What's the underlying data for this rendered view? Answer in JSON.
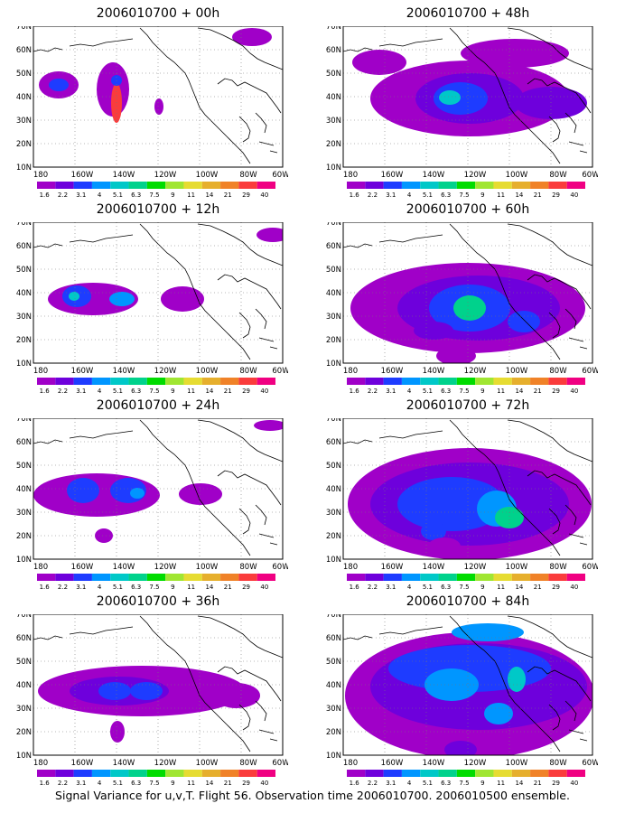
{
  "panels": [
    {
      "id": "p00",
      "title": "2006010700 + 00h"
    },
    {
      "id": "p48",
      "title": "2006010700 + 48h"
    },
    {
      "id": "p12",
      "title": "2006010700 + 12h"
    },
    {
      "id": "p60",
      "title": "2006010700 + 60h"
    },
    {
      "id": "p24",
      "title": "2006010700 + 24h"
    },
    {
      "id": "p72",
      "title": "2006010700 + 72h"
    },
    {
      "id": "p36",
      "title": "2006010700 + 36h"
    },
    {
      "id": "p84",
      "title": "2006010700 + 84h"
    }
  ],
  "lat_labels": [
    "70N",
    "60N",
    "50N",
    "40N",
    "30N",
    "20N",
    "10N"
  ],
  "lon_labels": [
    "180",
    "160W",
    "140W",
    "120W",
    "100W",
    "80W",
    "60W"
  ],
  "colorbar": {
    "levels": [
      "1.6",
      "2.2",
      "3.1",
      "4",
      "5.1",
      "6.3",
      "7.5",
      "9",
      "11",
      "14",
      "21",
      "29",
      "40"
    ],
    "colors": [
      "#a000c8",
      "#6e00dc",
      "#1e3cff",
      "#0096ff",
      "#00c8c8",
      "#00d28c",
      "#00dc00",
      "#a0e632",
      "#e6dc32",
      "#e6af2d",
      "#f08228",
      "#fa3c3c",
      "#f00082"
    ]
  },
  "caption": "Signal Variance for u,v,T. Flight 56. Observation time 2006010700. 2006010500 ensemble."
}
